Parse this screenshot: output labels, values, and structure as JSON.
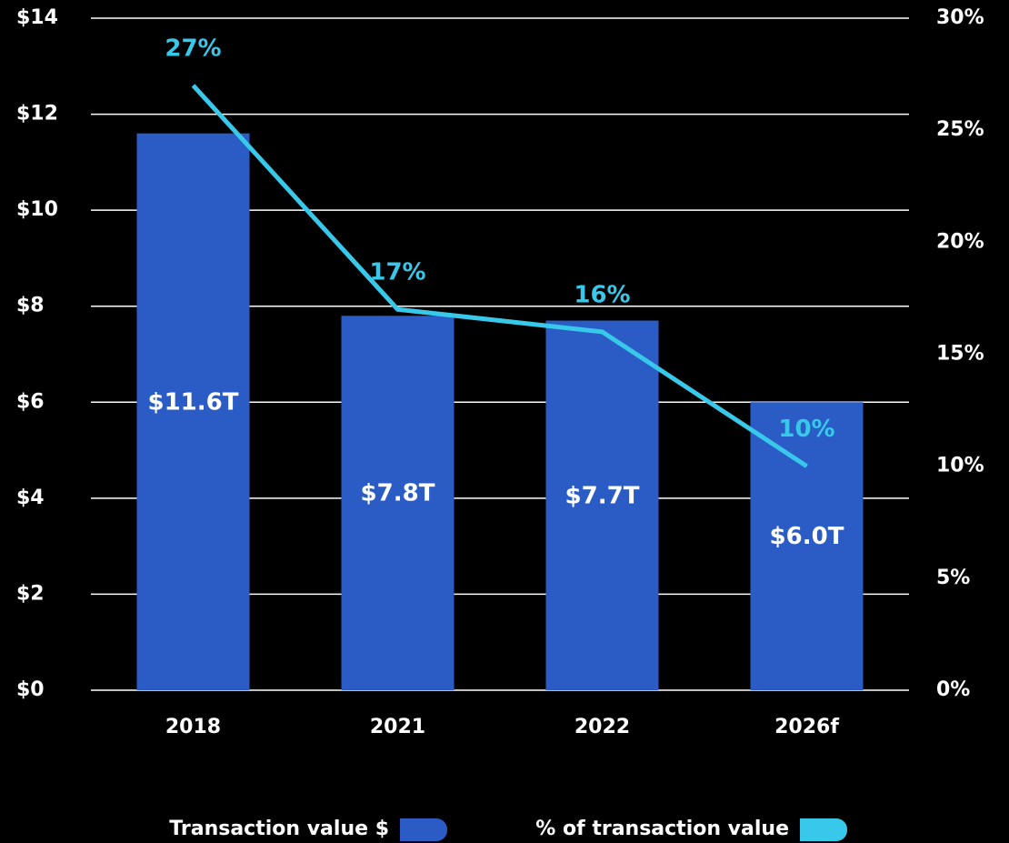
{
  "chart_data": {
    "type": "bar",
    "categories": [
      "2018",
      "2021",
      "2022",
      "2026f"
    ],
    "series": [
      {
        "name": "Transaction value $",
        "type": "bar",
        "color": "#2b5cc6",
        "values": [
          11.6,
          7.8,
          7.7,
          6.0
        ],
        "value_labels": [
          "$11.6T",
          "$7.8T",
          "$7.7T",
          "$6.0T"
        ]
      },
      {
        "name": "% of transaction value",
        "type": "line",
        "axis": "y2",
        "color": "#38c8ea",
        "values": [
          27,
          17,
          16,
          10
        ],
        "value_labels": [
          "27%",
          "17%",
          "16%",
          "10%"
        ]
      }
    ],
    "ylim": [
      0,
      14
    ],
    "yticks": [
      {
        "value": 0,
        "label": "$0"
      },
      {
        "value": 2,
        "label": "$2"
      },
      {
        "value": 4,
        "label": "$4"
      },
      {
        "value": 6,
        "label": "$6"
      },
      {
        "value": 8,
        "label": "$8"
      },
      {
        "value": 10,
        "label": "$10"
      },
      {
        "value": 12,
        "label": "$12"
      },
      {
        "value": 14,
        "label": "$14"
      }
    ],
    "y2lim": [
      0,
      30
    ],
    "y2ticks": [
      {
        "value": 0,
        "label": "0%"
      },
      {
        "value": 5,
        "label": "5%"
      },
      {
        "value": 10,
        "label": "10%"
      },
      {
        "value": 15,
        "label": "15%"
      },
      {
        "value": 20,
        "label": "20%"
      },
      {
        "value": 25,
        "label": "25%"
      },
      {
        "value": 30,
        "label": "30%"
      }
    ],
    "grid": true
  }
}
